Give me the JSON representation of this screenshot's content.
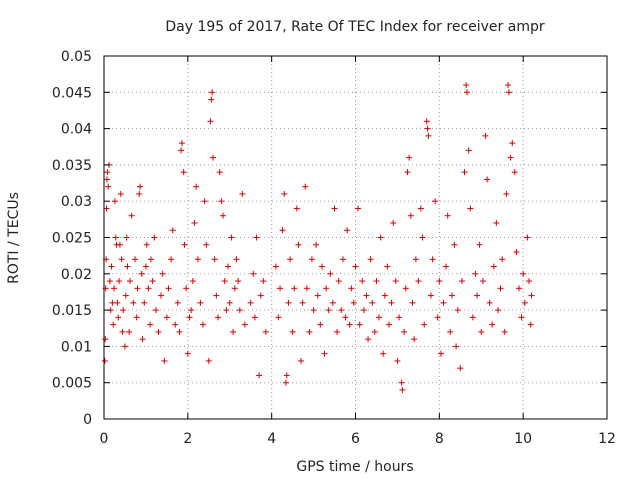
{
  "chart_data": {
    "type": "scatter",
    "title": "Day 195 of 2017, Rate Of TEC Index for receiver ampr",
    "xlabel": "GPS time / hours",
    "ylabel": "ROTI / TECUs",
    "xlim": [
      0,
      12
    ],
    "ylim": [
      0,
      0.05
    ],
    "xticks": [
      0,
      2,
      4,
      6,
      8,
      10,
      12
    ],
    "yticks": [
      0,
      0.005,
      0.01,
      0.015,
      0.02,
      0.025,
      0.03,
      0.035,
      0.04,
      0.045,
      0.05
    ],
    "xtick_labels": [
      "0",
      "2",
      "4",
      "6",
      "8",
      "10",
      "12"
    ],
    "ytick_labels": [
      "0",
      "0.005",
      "0.01",
      "0.015",
      "0.02",
      "0.025",
      "0.03",
      "0.035",
      "0.04",
      "0.045",
      "0.05"
    ],
    "grid": true,
    "marker": "+",
    "series": [
      {
        "name": "ROTI",
        "color": "#dd0000",
        "points": [
          [
            0.02,
            0.008
          ],
          [
            0.03,
            0.011
          ],
          [
            0.04,
            0.018
          ],
          [
            0.05,
            0.022
          ],
          [
            0.06,
            0.029
          ],
          [
            0.07,
            0.033
          ],
          [
            0.08,
            0.034
          ],
          [
            0.1,
            0.032
          ],
          [
            0.12,
            0.035
          ],
          [
            0.14,
            0.019
          ],
          [
            0.16,
            0.015
          ],
          [
            0.18,
            0.021
          ],
          [
            0.2,
            0.016
          ],
          [
            0.22,
            0.013
          ],
          [
            0.24,
            0.018
          ],
          [
            0.26,
            0.03
          ],
          [
            0.28,
            0.025
          ],
          [
            0.3,
            0.024
          ],
          [
            0.32,
            0.016
          ],
          [
            0.34,
            0.014
          ],
          [
            0.36,
            0.019
          ],
          [
            0.38,
            0.024
          ],
          [
            0.4,
            0.031
          ],
          [
            0.42,
            0.022
          ],
          [
            0.44,
            0.012
          ],
          [
            0.46,
            0.015
          ],
          [
            0.5,
            0.01
          ],
          [
            0.52,
            0.017
          ],
          [
            0.54,
            0.025
          ],
          [
            0.56,
            0.021
          ],
          [
            0.6,
            0.012
          ],
          [
            0.62,
            0.019
          ],
          [
            0.66,
            0.028
          ],
          [
            0.7,
            0.016
          ],
          [
            0.74,
            0.022
          ],
          [
            0.78,
            0.014
          ],
          [
            0.8,
            0.018
          ],
          [
            0.84,
            0.031
          ],
          [
            0.86,
            0.032
          ],
          [
            0.9,
            0.02
          ],
          [
            0.92,
            0.011
          ],
          [
            0.96,
            0.016
          ],
          [
            1.0,
            0.021
          ],
          [
            1.02,
            0.024
          ],
          [
            1.06,
            0.018
          ],
          [
            1.1,
            0.013
          ],
          [
            1.12,
            0.022
          ],
          [
            1.16,
            0.019
          ],
          [
            1.2,
            0.025
          ],
          [
            1.24,
            0.015
          ],
          [
            1.3,
            0.012
          ],
          [
            1.36,
            0.017
          ],
          [
            1.4,
            0.02
          ],
          [
            1.44,
            0.008
          ],
          [
            1.5,
            0.014
          ],
          [
            1.54,
            0.018
          ],
          [
            1.6,
            0.022
          ],
          [
            1.64,
            0.026
          ],
          [
            1.7,
            0.013
          ],
          [
            1.76,
            0.016
          ],
          [
            1.8,
            0.012
          ],
          [
            1.84,
            0.037
          ],
          [
            1.86,
            0.038
          ],
          [
            1.9,
            0.034
          ],
          [
            1.92,
            0.024
          ],
          [
            1.96,
            0.018
          ],
          [
            2.0,
            0.009
          ],
          [
            2.04,
            0.014
          ],
          [
            2.08,
            0.015
          ],
          [
            2.12,
            0.019
          ],
          [
            2.16,
            0.027
          ],
          [
            2.2,
            0.032
          ],
          [
            2.24,
            0.022
          ],
          [
            2.3,
            0.016
          ],
          [
            2.36,
            0.013
          ],
          [
            2.4,
            0.03
          ],
          [
            2.44,
            0.024
          ],
          [
            2.5,
            0.008
          ],
          [
            2.54,
            0.041
          ],
          [
            2.56,
            0.044
          ],
          [
            2.58,
            0.045
          ],
          [
            2.6,
            0.036
          ],
          [
            2.64,
            0.022
          ],
          [
            2.68,
            0.017
          ],
          [
            2.72,
            0.014
          ],
          [
            2.76,
            0.034
          ],
          [
            2.8,
            0.03
          ],
          [
            2.84,
            0.028
          ],
          [
            2.88,
            0.019
          ],
          [
            2.92,
            0.015
          ],
          [
            2.96,
            0.021
          ],
          [
            3.0,
            0.016
          ],
          [
            3.04,
            0.025
          ],
          [
            3.08,
            0.012
          ],
          [
            3.12,
            0.018
          ],
          [
            3.16,
            0.022
          ],
          [
            3.2,
            0.019
          ],
          [
            3.24,
            0.015
          ],
          [
            3.3,
            0.031
          ],
          [
            3.36,
            0.013
          ],
          [
            3.5,
            0.016
          ],
          [
            3.56,
            0.02
          ],
          [
            3.6,
            0.014
          ],
          [
            3.64,
            0.025
          ],
          [
            3.7,
            0.006
          ],
          [
            3.74,
            0.017
          ],
          [
            3.8,
            0.019
          ],
          [
            3.86,
            0.012
          ],
          [
            4.1,
            0.021
          ],
          [
            4.16,
            0.014
          ],
          [
            4.2,
            0.018
          ],
          [
            4.26,
            0.026
          ],
          [
            4.3,
            0.031
          ],
          [
            4.34,
            0.005
          ],
          [
            4.36,
            0.006
          ],
          [
            4.4,
            0.016
          ],
          [
            4.44,
            0.022
          ],
          [
            4.5,
            0.012
          ],
          [
            4.54,
            0.018
          ],
          [
            4.6,
            0.029
          ],
          [
            4.64,
            0.024
          ],
          [
            4.7,
            0.008
          ],
          [
            4.74,
            0.016
          ],
          [
            4.8,
            0.032
          ],
          [
            4.84,
            0.018
          ],
          [
            4.9,
            0.012
          ],
          [
            4.96,
            0.022
          ],
          [
            5.0,
            0.015
          ],
          [
            5.06,
            0.024
          ],
          [
            5.1,
            0.017
          ],
          [
            5.16,
            0.013
          ],
          [
            5.2,
            0.021
          ],
          [
            5.26,
            0.009
          ],
          [
            5.3,
            0.018
          ],
          [
            5.36,
            0.015
          ],
          [
            5.4,
            0.02
          ],
          [
            5.46,
            0.016
          ],
          [
            5.5,
            0.029
          ],
          [
            5.56,
            0.012
          ],
          [
            5.6,
            0.019
          ],
          [
            5.66,
            0.015
          ],
          [
            5.7,
            0.022
          ],
          [
            5.76,
            0.014
          ],
          [
            5.8,
            0.026
          ],
          [
            5.86,
            0.013
          ],
          [
            5.9,
            0.018
          ],
          [
            5.96,
            0.016
          ],
          [
            6.0,
            0.021
          ],
          [
            6.06,
            0.029
          ],
          [
            6.1,
            0.013
          ],
          [
            6.16,
            0.019
          ],
          [
            6.2,
            0.015
          ],
          [
            6.26,
            0.017
          ],
          [
            6.3,
            0.011
          ],
          [
            6.36,
            0.022
          ],
          [
            6.4,
            0.016
          ],
          [
            6.46,
            0.012
          ],
          [
            6.5,
            0.019
          ],
          [
            6.56,
            0.014
          ],
          [
            6.6,
            0.025
          ],
          [
            6.66,
            0.009
          ],
          [
            6.7,
            0.017
          ],
          [
            6.76,
            0.021
          ],
          [
            6.8,
            0.013
          ],
          [
            6.86,
            0.016
          ],
          [
            6.9,
            0.027
          ],
          [
            6.96,
            0.019
          ],
          [
            7.0,
            0.008
          ],
          [
            7.04,
            0.014
          ],
          [
            7.1,
            0.005
          ],
          [
            7.12,
            0.004
          ],
          [
            7.16,
            0.012
          ],
          [
            7.2,
            0.018
          ],
          [
            7.24,
            0.034
          ],
          [
            7.28,
            0.036
          ],
          [
            7.32,
            0.028
          ],
          [
            7.36,
            0.016
          ],
          [
            7.4,
            0.011
          ],
          [
            7.44,
            0.022
          ],
          [
            7.5,
            0.019
          ],
          [
            7.56,
            0.029
          ],
          [
            7.6,
            0.025
          ],
          [
            7.64,
            0.013
          ],
          [
            7.7,
            0.041
          ],
          [
            7.72,
            0.04
          ],
          [
            7.74,
            0.039
          ],
          [
            7.8,
            0.017
          ],
          [
            7.84,
            0.022
          ],
          [
            7.9,
            0.03
          ],
          [
            7.96,
            0.014
          ],
          [
            8.0,
            0.019
          ],
          [
            8.04,
            0.009
          ],
          [
            8.1,
            0.016
          ],
          [
            8.16,
            0.021
          ],
          [
            8.2,
            0.028
          ],
          [
            8.26,
            0.012
          ],
          [
            8.3,
            0.017
          ],
          [
            8.36,
            0.024
          ],
          [
            8.4,
            0.01
          ],
          [
            8.44,
            0.015
          ],
          [
            8.5,
            0.007
          ],
          [
            8.54,
            0.019
          ],
          [
            8.6,
            0.034
          ],
          [
            8.64,
            0.046
          ],
          [
            8.66,
            0.045
          ],
          [
            8.7,
            0.037
          ],
          [
            8.74,
            0.029
          ],
          [
            8.8,
            0.014
          ],
          [
            8.86,
            0.02
          ],
          [
            8.9,
            0.017
          ],
          [
            8.96,
            0.024
          ],
          [
            9.0,
            0.012
          ],
          [
            9.04,
            0.019
          ],
          [
            9.1,
            0.039
          ],
          [
            9.14,
            0.033
          ],
          [
            9.2,
            0.016
          ],
          [
            9.26,
            0.013
          ],
          [
            9.3,
            0.021
          ],
          [
            9.36,
            0.027
          ],
          [
            9.4,
            0.015
          ],
          [
            9.46,
            0.018
          ],
          [
            9.5,
            0.022
          ],
          [
            9.56,
            0.012
          ],
          [
            9.6,
            0.031
          ],
          [
            9.64,
            0.046
          ],
          [
            9.66,
            0.045
          ],
          [
            9.7,
            0.036
          ],
          [
            9.74,
            0.038
          ],
          [
            9.8,
            0.034
          ],
          [
            9.84,
            0.023
          ],
          [
            9.9,
            0.018
          ],
          [
            9.96,
            0.014
          ],
          [
            10.0,
            0.02
          ],
          [
            10.04,
            0.016
          ],
          [
            10.1,
            0.025
          ],
          [
            10.14,
            0.019
          ],
          [
            10.18,
            0.013
          ],
          [
            10.2,
            0.017
          ]
        ]
      }
    ]
  }
}
